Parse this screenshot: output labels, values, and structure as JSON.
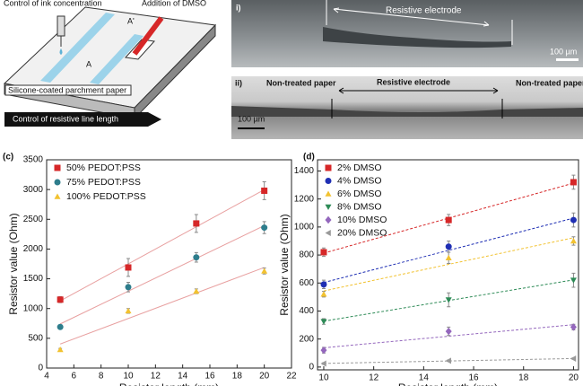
{
  "schematic": {
    "ink_label": "Control of ink concentration",
    "dmso_label": "Addition of DMSO",
    "a_prime": "A'",
    "a": "A",
    "paper_label": "Silicone-coated parchment paper",
    "length_label": "Control of resistive line length"
  },
  "images": {
    "top": {
      "label": "i)",
      "electrode": "Resistive electrode",
      "scale": "100 µm"
    },
    "bottom": {
      "label": "ii)",
      "left": "Non-treated paper",
      "electrode": "Resistive electrode",
      "right": "Non-treated paper",
      "scale": "100 µm"
    }
  },
  "chart_data": [
    {
      "type": "scatter",
      "panel": "(c)",
      "x_label": "Resistor length (mm)",
      "y_label": "Resistor value (Ohm)",
      "x": [
        5,
        10,
        15,
        20
      ],
      "xlim": [
        4,
        22
      ],
      "xticks": [
        4,
        6,
        8,
        10,
        12,
        14,
        16,
        18,
        20,
        22
      ],
      "ylim": [
        0,
        3500
      ],
      "yticks": [
        0,
        500,
        1000,
        1500,
        2000,
        2500,
        3000,
        3500
      ],
      "fit_lines": true,
      "fit_color": "#e8a0a0",
      "fit_dashed": false,
      "legend": "upper-left",
      "series": [
        {
          "name": "50% PEDOT:PSS",
          "color": "#d62728",
          "marker": "square",
          "values": [
            1150,
            1690,
            2430,
            2980
          ],
          "errors": [
            50,
            150,
            150,
            150
          ]
        },
        {
          "name": "75% PEDOT:PSS",
          "color": "#2e7d8c",
          "marker": "circle",
          "values": [
            690,
            1360,
            1860,
            2360
          ],
          "errors": [
            30,
            80,
            80,
            100
          ]
        },
        {
          "name": "100% PEDOT:PSS",
          "color": "#f2c230",
          "marker": "triangle-up",
          "values": [
            310,
            960,
            1290,
            1630
          ],
          "errors": [
            20,
            40,
            40,
            50
          ]
        }
      ]
    },
    {
      "type": "scatter",
      "panel": "(d)",
      "x_label": "Resistor length (mm)",
      "y_label": "Resistor value (Ohm)",
      "x": [
        10,
        15,
        20
      ],
      "xlim": [
        9.75,
        20.2
      ],
      "xticks": [
        10,
        12,
        14,
        16,
        18,
        20
      ],
      "ylim": [
        -20,
        1480
      ],
      "yticks": [
        0,
        200,
        400,
        600,
        800,
        1000,
        1200,
        1400
      ],
      "fit_lines": true,
      "fit_dashed": true,
      "legend": "upper-left",
      "series": [
        {
          "name": "2% DMSO",
          "color": "#d62728",
          "marker": "square",
          "values": [
            820,
            1050,
            1320
          ],
          "errors": [
            30,
            40,
            50
          ]
        },
        {
          "name": "4% DMSO",
          "color": "#1f2fb4",
          "marker": "circle",
          "values": [
            590,
            860,
            1050
          ],
          "errors": [
            30,
            40,
            50
          ]
        },
        {
          "name": "6% DMSO",
          "color": "#f2c230",
          "marker": "triangle-up",
          "values": [
            520,
            780,
            900
          ],
          "errors": [
            20,
            40,
            30
          ]
        },
        {
          "name": "8% DMSO",
          "color": "#2e8b57",
          "marker": "triangle-down",
          "values": [
            325,
            480,
            620
          ],
          "errors": [
            20,
            50,
            50
          ]
        },
        {
          "name": "10% DMSO",
          "color": "#9467bd",
          "marker": "diamond",
          "values": [
            120,
            255,
            285
          ],
          "errors": [
            20,
            30,
            20
          ]
        },
        {
          "name": "20% DMSO",
          "color": "#999999",
          "marker": "triangle-left",
          "values": [
            25,
            45,
            60
          ],
          "errors": [
            5,
            5,
            5
          ]
        }
      ]
    }
  ]
}
